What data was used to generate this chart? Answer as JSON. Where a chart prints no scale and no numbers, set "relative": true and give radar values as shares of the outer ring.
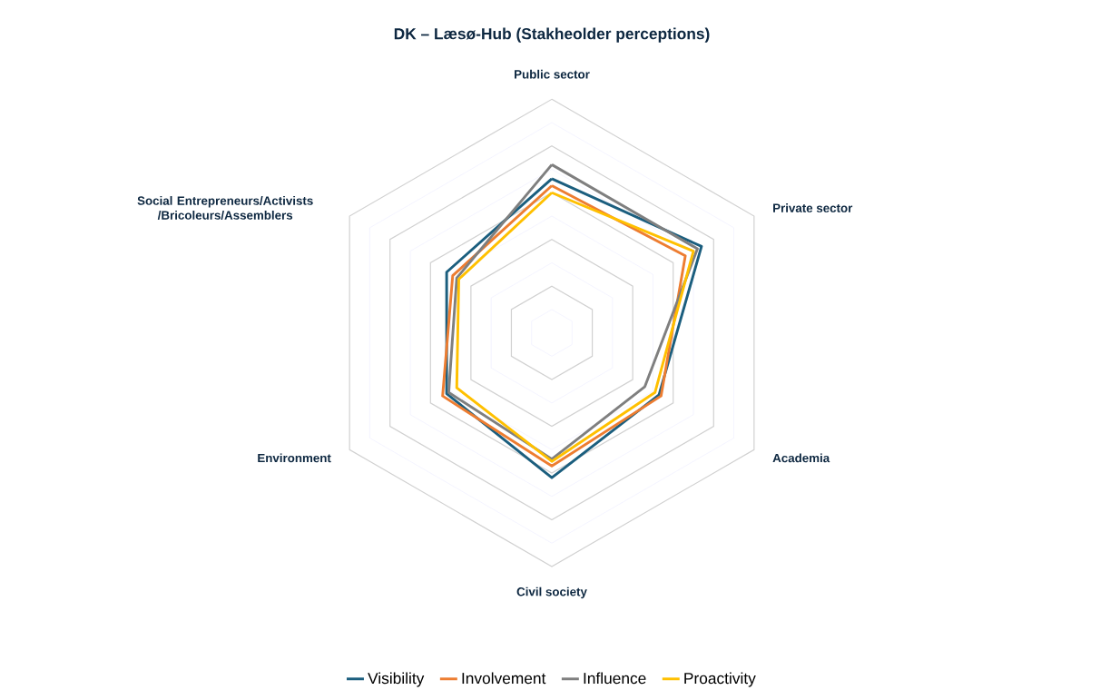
{
  "chart_data": {
    "type": "radar",
    "title": "DK – Læsø-Hub (Stakheolder perceptions)",
    "categories": [
      "Public sector",
      "Private sector",
      "Academia",
      "Civil society",
      "Environment",
      "Social Entrepreneurs/Activists /Bricoleurs/Assemblers"
    ],
    "relative": true,
    "grid": true,
    "legend": "bottom",
    "series": [
      {
        "name": "Visibility",
        "color": "#1b5e7e",
        "values": [
          0.66,
          0.74,
          0.53,
          0.62,
          0.52,
          0.52
        ]
      },
      {
        "name": "Involvement",
        "color": "#ed7d31",
        "values": [
          0.63,
          0.66,
          0.54,
          0.57,
          0.54,
          0.49
        ]
      },
      {
        "name": "Influence",
        "color": "#7f7f7f",
        "values": [
          0.72,
          0.72,
          0.46,
          0.54,
          0.51,
          0.47
        ]
      },
      {
        "name": "Proactivity",
        "color": "#ffc000",
        "values": [
          0.6,
          0.7,
          0.51,
          0.55,
          0.47,
          0.46
        ]
      }
    ]
  }
}
